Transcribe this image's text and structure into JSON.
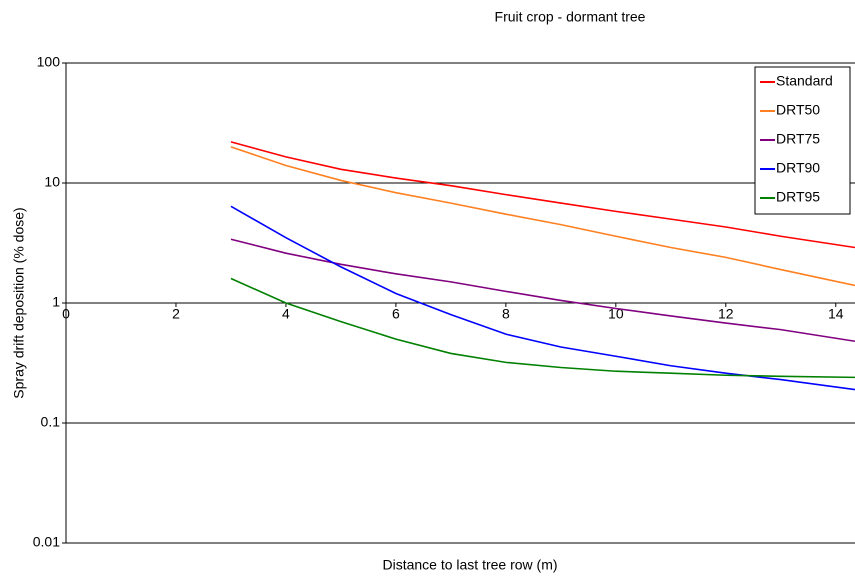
{
  "chart_data": {
    "type": "line",
    "title": "Fruit crop - dormant tree",
    "xlabel": "Distance to last tree row (m)",
    "ylabel": "Spray drift deposition (% dose)",
    "x": [
      3,
      4,
      5,
      6,
      7,
      8,
      9,
      10,
      11,
      12,
      13,
      14.35
    ],
    "series": [
      {
        "name": "Standard",
        "color": "#ff0000",
        "values": [
          22,
          16.5,
          13,
          11,
          9.5,
          8,
          6.8,
          5.8,
          5,
          4.3,
          3.6,
          2.9
        ]
      },
      {
        "name": "DRT50",
        "color": "#ff8020",
        "values": [
          20,
          14,
          10.5,
          8.3,
          6.8,
          5.5,
          4.5,
          3.6,
          2.9,
          2.4,
          1.9,
          1.4
        ]
      },
      {
        "name": "DRT75",
        "color": "#800080",
        "values": [
          3.4,
          2.6,
          2.1,
          1.75,
          1.5,
          1.25,
          1.05,
          0.9,
          0.78,
          0.68,
          0.6,
          0.48
        ]
      },
      {
        "name": "DRT90",
        "color": "#0000ff",
        "values": [
          6.4,
          3.5,
          2.0,
          1.2,
          0.8,
          0.55,
          0.43,
          0.36,
          0.3,
          0.26,
          0.23,
          0.19
        ]
      },
      {
        "name": "DRT95",
        "color": "#008000",
        "values": [
          1.6,
          1.0,
          0.7,
          0.5,
          0.38,
          0.32,
          0.29,
          0.27,
          0.26,
          0.25,
          0.245,
          0.24
        ]
      }
    ],
    "xlim": [
      0,
      14.35
    ],
    "xticks": [
      0,
      2,
      4,
      6,
      8,
      10,
      12,
      14
    ],
    "ylim": [
      0.01,
      100
    ],
    "yticks": [
      0.01,
      0.1,
      1,
      10,
      100
    ],
    "ylog": true,
    "grid": true,
    "xaxis_at": 1,
    "legend": "top-right"
  }
}
